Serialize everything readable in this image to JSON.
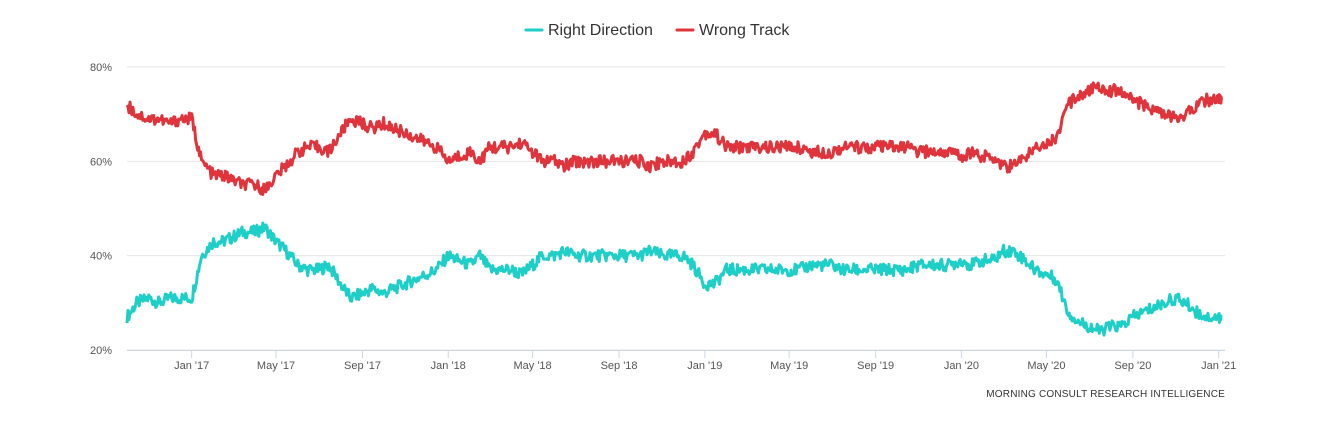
{
  "chart_data": {
    "type": "line",
    "title": "",
    "xlabel": "",
    "ylabel": "",
    "ylim": [
      20,
      80
    ],
    "yticks": [
      "80%",
      "60%",
      "40%",
      "20%"
    ],
    "ytick_values": [
      80,
      60,
      40,
      20
    ],
    "xlim": [
      "2016-10-01",
      "2021-01-10"
    ],
    "xticks": [
      {
        "label": "Jan '17",
        "date": "2017-01-01"
      },
      {
        "label": "May '17",
        "date": "2017-05-01"
      },
      {
        "label": "Sep '17",
        "date": "2017-09-01"
      },
      {
        "label": "Jan '18",
        "date": "2018-01-01"
      },
      {
        "label": "May '18",
        "date": "2018-05-01"
      },
      {
        "label": "Sep '18",
        "date": "2018-09-01"
      },
      {
        "label": "Jan '19",
        "date": "2019-01-01"
      },
      {
        "label": "May '19",
        "date": "2019-05-01"
      },
      {
        "label": "Sep '19",
        "date": "2019-09-01"
      },
      {
        "label": "Jan '20",
        "date": "2020-01-01"
      },
      {
        "label": "May '20",
        "date": "2020-05-01"
      },
      {
        "label": "Sep '20",
        "date": "2020-09-01"
      },
      {
        "label": "Jan '21",
        "date": "2021-01-01"
      }
    ],
    "grid": true,
    "legend": "top-center",
    "source": "MORNING CONSULT RESEARCH INTELLIGENCE",
    "series": [
      {
        "name": "Right Direction",
        "color": "#1ECFC8",
        "points": [
          [
            "2016-10-01",
            27
          ],
          [
            "2016-10-15",
            30
          ],
          [
            "2016-11-01",
            31
          ],
          [
            "2016-11-15",
            30
          ],
          [
            "2016-12-01",
            31
          ],
          [
            "2016-12-15",
            31
          ],
          [
            "2017-01-01",
            31
          ],
          [
            "2017-01-15",
            40
          ],
          [
            "2017-02-01",
            43
          ],
          [
            "2017-02-15",
            43
          ],
          [
            "2017-03-01",
            44
          ],
          [
            "2017-03-15",
            45
          ],
          [
            "2017-04-01",
            45
          ],
          [
            "2017-04-15",
            46
          ],
          [
            "2017-05-01",
            43
          ],
          [
            "2017-05-15",
            41
          ],
          [
            "2017-06-01",
            38
          ],
          [
            "2017-06-15",
            37
          ],
          [
            "2017-07-01",
            37
          ],
          [
            "2017-07-15",
            38
          ],
          [
            "2017-08-01",
            34
          ],
          [
            "2017-08-15",
            31
          ],
          [
            "2017-09-01",
            32
          ],
          [
            "2017-09-15",
            33
          ],
          [
            "2017-10-01",
            32
          ],
          [
            "2017-10-15",
            33
          ],
          [
            "2017-11-01",
            34
          ],
          [
            "2017-11-15",
            35
          ],
          [
            "2017-12-01",
            36
          ],
          [
            "2017-12-15",
            37
          ],
          [
            "2018-01-01",
            40
          ],
          [
            "2018-01-15",
            39
          ],
          [
            "2018-02-01",
            38
          ],
          [
            "2018-02-15",
            40
          ],
          [
            "2018-03-01",
            37
          ],
          [
            "2018-03-15",
            37
          ],
          [
            "2018-04-01",
            37
          ],
          [
            "2018-04-15",
            36
          ],
          [
            "2018-05-01",
            38
          ],
          [
            "2018-05-15",
            40
          ],
          [
            "2018-06-01",
            40
          ],
          [
            "2018-06-15",
            41
          ],
          [
            "2018-07-01",
            40
          ],
          [
            "2018-07-15",
            40
          ],
          [
            "2018-08-01",
            40
          ],
          [
            "2018-08-15",
            40
          ],
          [
            "2018-09-01",
            40
          ],
          [
            "2018-09-15",
            40
          ],
          [
            "2018-10-01",
            40
          ],
          [
            "2018-10-15",
            41
          ],
          [
            "2018-11-01",
            40
          ],
          [
            "2018-11-15",
            40
          ],
          [
            "2018-12-01",
            40
          ],
          [
            "2018-12-15",
            38
          ],
          [
            "2019-01-01",
            34
          ],
          [
            "2019-01-15",
            34
          ],
          [
            "2019-02-01",
            37
          ],
          [
            "2019-02-15",
            37
          ],
          [
            "2019-03-01",
            37
          ],
          [
            "2019-03-15",
            37
          ],
          [
            "2019-04-01",
            37
          ],
          [
            "2019-04-15",
            37
          ],
          [
            "2019-05-01",
            37
          ],
          [
            "2019-05-15",
            37
          ],
          [
            "2019-06-01",
            38
          ],
          [
            "2019-06-15",
            38
          ],
          [
            "2019-07-01",
            38
          ],
          [
            "2019-07-15",
            37
          ],
          [
            "2019-08-01",
            37
          ],
          [
            "2019-08-15",
            37
          ],
          [
            "2019-09-01",
            37
          ],
          [
            "2019-09-15",
            37
          ],
          [
            "2019-10-01",
            37
          ],
          [
            "2019-10-15",
            37
          ],
          [
            "2019-11-01",
            38
          ],
          [
            "2019-11-15",
            38
          ],
          [
            "2019-12-01",
            38
          ],
          [
            "2019-12-15",
            38
          ],
          [
            "2020-01-01",
            39
          ],
          [
            "2020-01-15",
            38
          ],
          [
            "2020-02-01",
            39
          ],
          [
            "2020-02-15",
            39
          ],
          [
            "2020-03-01",
            41
          ],
          [
            "2020-03-15",
            41
          ],
          [
            "2020-04-01",
            39
          ],
          [
            "2020-04-15",
            37
          ],
          [
            "2020-05-01",
            36
          ],
          [
            "2020-05-15",
            35
          ],
          [
            "2020-06-01",
            28
          ],
          [
            "2020-06-15",
            26
          ],
          [
            "2020-07-01",
            25
          ],
          [
            "2020-07-15",
            24
          ],
          [
            "2020-08-01",
            25
          ],
          [
            "2020-08-15",
            25
          ],
          [
            "2020-09-01",
            27
          ],
          [
            "2020-09-15",
            28
          ],
          [
            "2020-10-01",
            29
          ],
          [
            "2020-10-15",
            30
          ],
          [
            "2020-11-01",
            31
          ],
          [
            "2020-11-15",
            30
          ],
          [
            "2020-12-01",
            28
          ],
          [
            "2020-12-15",
            27
          ],
          [
            "2021-01-01",
            27
          ],
          [
            "2021-01-05",
            27
          ]
        ]
      },
      {
        "name": "Wrong Track",
        "color": "#E0343C",
        "points": [
          [
            "2016-10-01",
            72
          ],
          [
            "2016-10-15",
            70
          ],
          [
            "2016-11-01",
            69
          ],
          [
            "2016-11-15",
            69
          ],
          [
            "2016-12-01",
            68
          ],
          [
            "2016-12-15",
            69
          ],
          [
            "2017-01-01",
            69
          ],
          [
            "2017-01-15",
            60
          ],
          [
            "2017-02-01",
            57
          ],
          [
            "2017-02-15",
            57
          ],
          [
            "2017-03-01",
            56
          ],
          [
            "2017-03-15",
            55
          ],
          [
            "2017-04-01",
            55
          ],
          [
            "2017-04-15",
            54
          ],
          [
            "2017-05-01",
            57
          ],
          [
            "2017-05-15",
            59
          ],
          [
            "2017-06-01",
            62
          ],
          [
            "2017-06-15",
            63
          ],
          [
            "2017-07-01",
            63
          ],
          [
            "2017-07-15",
            62
          ],
          [
            "2017-08-01",
            66
          ],
          [
            "2017-08-15",
            69
          ],
          [
            "2017-09-01",
            68
          ],
          [
            "2017-09-15",
            67
          ],
          [
            "2017-10-01",
            68
          ],
          [
            "2017-10-15",
            67
          ],
          [
            "2017-11-01",
            66
          ],
          [
            "2017-11-15",
            65
          ],
          [
            "2017-12-01",
            64
          ],
          [
            "2017-12-15",
            63
          ],
          [
            "2018-01-01",
            60
          ],
          [
            "2018-01-15",
            61
          ],
          [
            "2018-02-01",
            62
          ],
          [
            "2018-02-15",
            60
          ],
          [
            "2018-03-01",
            63
          ],
          [
            "2018-03-15",
            63
          ],
          [
            "2018-04-01",
            63
          ],
          [
            "2018-04-15",
            64
          ],
          [
            "2018-05-01",
            62
          ],
          [
            "2018-05-15",
            60
          ],
          [
            "2018-06-01",
            60
          ],
          [
            "2018-06-15",
            59
          ],
          [
            "2018-07-01",
            60
          ],
          [
            "2018-07-15",
            60
          ],
          [
            "2018-08-01",
            60
          ],
          [
            "2018-08-15",
            60
          ],
          [
            "2018-09-01",
            60
          ],
          [
            "2018-09-15",
            60
          ],
          [
            "2018-10-01",
            60
          ],
          [
            "2018-10-15",
            59
          ],
          [
            "2018-11-01",
            60
          ],
          [
            "2018-11-15",
            60
          ],
          [
            "2018-12-01",
            60
          ],
          [
            "2018-12-15",
            62
          ],
          [
            "2019-01-01",
            66
          ],
          [
            "2019-01-15",
            66
          ],
          [
            "2019-02-01",
            63
          ],
          [
            "2019-02-15",
            63
          ],
          [
            "2019-03-01",
            63
          ],
          [
            "2019-03-15",
            63
          ],
          [
            "2019-04-01",
            63
          ],
          [
            "2019-04-15",
            63
          ],
          [
            "2019-05-01",
            63
          ],
          [
            "2019-05-15",
            63
          ],
          [
            "2019-06-01",
            62
          ],
          [
            "2019-06-15",
            62
          ],
          [
            "2019-07-01",
            62
          ],
          [
            "2019-07-15",
            63
          ],
          [
            "2019-08-01",
            63
          ],
          [
            "2019-08-15",
            63
          ],
          [
            "2019-09-01",
            63
          ],
          [
            "2019-09-15",
            63
          ],
          [
            "2019-10-01",
            63
          ],
          [
            "2019-10-15",
            63
          ],
          [
            "2019-11-01",
            62
          ],
          [
            "2019-11-15",
            62
          ],
          [
            "2019-12-01",
            62
          ],
          [
            "2019-12-15",
            62
          ],
          [
            "2020-01-01",
            61
          ],
          [
            "2020-01-15",
            62
          ],
          [
            "2020-02-01",
            61
          ],
          [
            "2020-02-15",
            61
          ],
          [
            "2020-03-01",
            59
          ],
          [
            "2020-03-15",
            59
          ],
          [
            "2020-04-01",
            61
          ],
          [
            "2020-04-15",
            63
          ],
          [
            "2020-05-01",
            64
          ],
          [
            "2020-05-15",
            65
          ],
          [
            "2020-06-01",
            72
          ],
          [
            "2020-06-15",
            74
          ],
          [
            "2020-07-01",
            75
          ],
          [
            "2020-07-15",
            76
          ],
          [
            "2020-08-01",
            75
          ],
          [
            "2020-08-15",
            75
          ],
          [
            "2020-09-01",
            73
          ],
          [
            "2020-09-15",
            72
          ],
          [
            "2020-10-01",
            71
          ],
          [
            "2020-10-15",
            70
          ],
          [
            "2020-11-01",
            69
          ],
          [
            "2020-11-15",
            70
          ],
          [
            "2020-12-01",
            72
          ],
          [
            "2020-12-15",
            73
          ],
          [
            "2021-01-01",
            73
          ],
          [
            "2021-01-05",
            73
          ]
        ]
      }
    ]
  }
}
